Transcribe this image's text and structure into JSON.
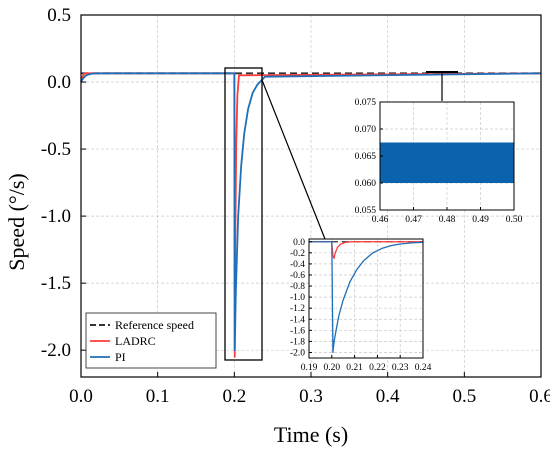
{
  "chart_data": [
    {
      "id": "main",
      "type": "line",
      "xlabel": "Time (s)",
      "ylabel": "Speed (°/s)",
      "xlim": [
        0.0,
        0.6
      ],
      "ylim": [
        -2.2,
        0.5
      ],
      "xticks": [
        "0.0",
        "0.1",
        "0.2",
        "0.3",
        "0.4",
        "0.5",
        "0.6"
      ],
      "yticks": [
        "0.5",
        "0.0",
        "-0.5",
        "-1.0",
        "-1.5",
        "-2.0"
      ],
      "grid": true,
      "legend_position": "bottom-left",
      "series": [
        {
          "name": "Reference speed",
          "color": "#333333",
          "dash": "dashed",
          "x": [
            0.0,
            0.6
          ],
          "y": [
            0.065,
            0.065
          ]
        },
        {
          "name": "LADRC",
          "color": "#ff3b3b",
          "x": [
            0.0,
            0.002,
            0.004,
            0.006,
            0.01,
            0.2,
            0.2005,
            0.2012,
            0.2025,
            0.204,
            0.206,
            0.6
          ],
          "y": [
            0.0,
            0.04,
            0.06,
            0.065,
            0.065,
            0.065,
            -2.05,
            -1.2,
            -0.45,
            -0.1,
            0.05,
            0.065
          ]
        },
        {
          "name": "PI",
          "color": "#1f6fb8",
          "x": [
            0.0,
            0.002,
            0.004,
            0.006,
            0.008,
            0.012,
            0.016,
            0.02,
            0.03,
            0.2,
            0.2005,
            0.202,
            0.205,
            0.209,
            0.213,
            0.218,
            0.224,
            0.23,
            0.24,
            0.6
          ],
          "y": [
            0.0,
            0.02,
            0.035,
            0.046,
            0.053,
            0.06,
            0.063,
            0.064,
            0.065,
            0.065,
            -2.0,
            -1.55,
            -1.0,
            -0.62,
            -0.38,
            -0.2,
            -0.08,
            -0.02,
            0.04,
            0.065
          ]
        }
      ]
    },
    {
      "id": "zoom_transient",
      "type": "line",
      "xlim": [
        0.19,
        0.24
      ],
      "ylim": [
        -2.1,
        0.05
      ],
      "xticks": [
        "0.19",
        "0.20",
        "0.21",
        "0.22",
        "0.23",
        "0.24"
      ],
      "yticks": [
        "0.0",
        "-0.2",
        "-0.4",
        "-0.6",
        "-0.8",
        "-1.0",
        "-1.2",
        "-1.4",
        "-1.6",
        "-1.8",
        "-2.0"
      ],
      "grid": true,
      "series": [
        {
          "name": "Reference speed",
          "color": "#333333",
          "dash": "dashed",
          "x": [
            0.19,
            0.24
          ],
          "y": [
            0.0,
            0.0
          ]
        },
        {
          "name": "LADRC",
          "color": "#ff3b3b",
          "x": [
            0.19,
            0.2,
            0.2005,
            0.201,
            0.2015,
            0.2025,
            0.204,
            0.206,
            0.209,
            0.24
          ],
          "y": [
            0.0,
            0.0,
            -0.25,
            -0.3,
            -0.2,
            -0.1,
            -0.04,
            -0.01,
            0.0,
            0.0
          ]
        },
        {
          "name": "PI",
          "color": "#1f6fb8",
          "x": [
            0.19,
            0.2,
            0.2005,
            0.201,
            0.203,
            0.205,
            0.208,
            0.211,
            0.214,
            0.218,
            0.222,
            0.226,
            0.23,
            0.235,
            0.24
          ],
          "y": [
            0.0,
            0.0,
            -2.0,
            -1.8,
            -1.35,
            -1.05,
            -0.72,
            -0.5,
            -0.34,
            -0.2,
            -0.12,
            -0.07,
            -0.04,
            -0.02,
            -0.01
          ]
        }
      ]
    },
    {
      "id": "zoom_steady",
      "type": "area",
      "xlim": [
        0.46,
        0.5
      ],
      "ylim": [
        0.055,
        0.075
      ],
      "xticks": [
        "0.46",
        "0.47",
        "0.48",
        "0.49",
        "0.50"
      ],
      "yticks": [
        "0.075",
        "0.070",
        "0.065",
        "0.060",
        "0.055"
      ],
      "grid": true,
      "series": [
        {
          "name": "PI",
          "color": "#0b62ad",
          "x": [
            0.46,
            0.5
          ],
          "y_low": 0.06,
          "y_high": 0.0675
        }
      ]
    }
  ]
}
